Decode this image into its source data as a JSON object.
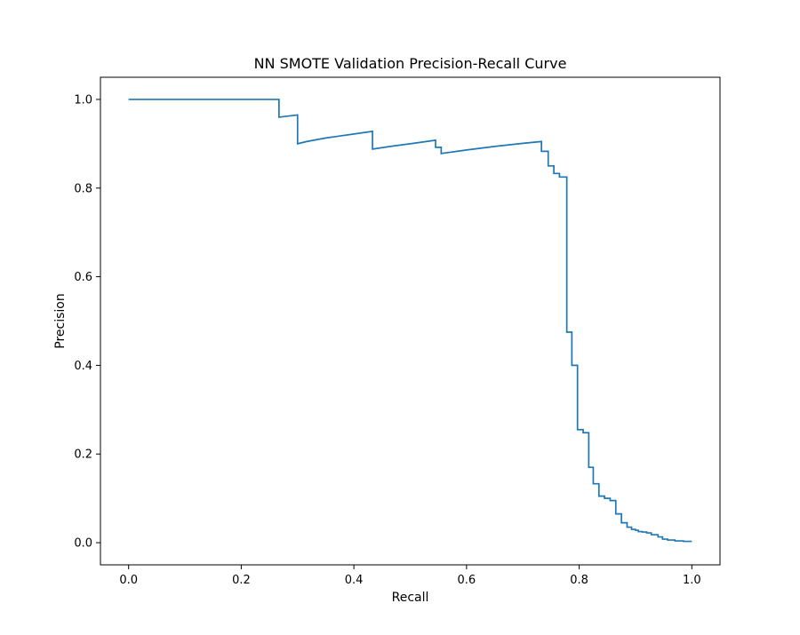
{
  "chart_data": {
    "type": "line",
    "title": "NN SMOTE Validation Precision-Recall Curve",
    "xlabel": "Recall",
    "ylabel": "Precision",
    "xlim": [
      -0.05,
      1.05
    ],
    "ylim": [
      -0.05,
      1.05
    ],
    "x_ticks": [
      "0.0",
      "0.2",
      "0.4",
      "0.6",
      "0.8",
      "1.0"
    ],
    "y_ticks": [
      "0.0",
      "0.2",
      "0.4",
      "0.6",
      "0.8",
      "1.0"
    ],
    "grid": false,
    "line_color": "#1f77b4",
    "series": [
      {
        "x": [
          0.0,
          0.267,
          0.267,
          0.3,
          0.3,
          0.316,
          0.35,
          0.4,
          0.433,
          0.433,
          0.47,
          0.5,
          0.545,
          0.545,
          0.555,
          0.555,
          0.6,
          0.65,
          0.7,
          0.733,
          0.733,
          0.745,
          0.745,
          0.755,
          0.755,
          0.765,
          0.765,
          0.778,
          0.778,
          0.787,
          0.787,
          0.797,
          0.797,
          0.807,
          0.807,
          0.817,
          0.817,
          0.825,
          0.825,
          0.835,
          0.835,
          0.845,
          0.845,
          0.855,
          0.855,
          0.865,
          0.865,
          0.875,
          0.875,
          0.885,
          0.885,
          0.893,
          0.893,
          0.9,
          0.9,
          0.905,
          0.905,
          0.912,
          0.912,
          0.92,
          0.92,
          0.928,
          0.928,
          0.94,
          0.94,
          0.948,
          0.948,
          0.957,
          0.957,
          0.97,
          0.97,
          0.985,
          0.985,
          1.0
        ],
        "y": [
          1.0,
          1.0,
          0.96,
          0.965,
          0.9,
          0.905,
          0.913,
          0.922,
          0.928,
          0.888,
          0.895,
          0.9,
          0.908,
          0.892,
          0.892,
          0.878,
          0.886,
          0.894,
          0.901,
          0.905,
          0.883,
          0.883,
          0.85,
          0.85,
          0.833,
          0.833,
          0.825,
          0.825,
          0.475,
          0.475,
          0.4,
          0.4,
          0.255,
          0.255,
          0.248,
          0.248,
          0.17,
          0.17,
          0.133,
          0.133,
          0.105,
          0.105,
          0.1,
          0.1,
          0.095,
          0.095,
          0.065,
          0.065,
          0.045,
          0.045,
          0.035,
          0.035,
          0.03,
          0.03,
          0.028,
          0.028,
          0.025,
          0.025,
          0.024,
          0.024,
          0.022,
          0.022,
          0.018,
          0.018,
          0.013,
          0.013,
          0.008,
          0.008,
          0.006,
          0.006,
          0.004,
          0.004,
          0.003,
          0.003
        ]
      }
    ]
  }
}
